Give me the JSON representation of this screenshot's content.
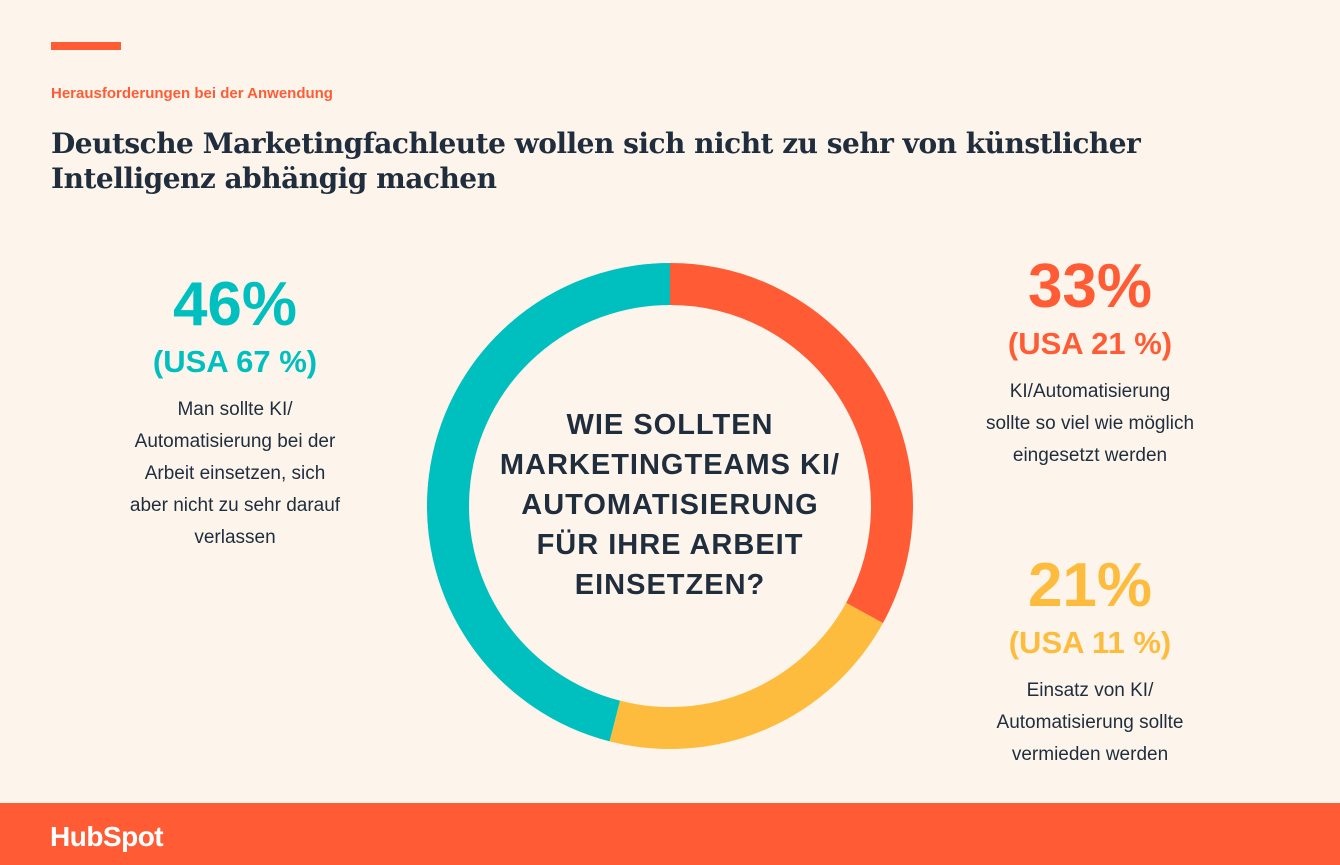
{
  "eyebrow": "Herausforderungen bei der Anwendung",
  "title_line1": "Deutsche Marketingfachleute wollen sich nicht zu sehr von künstlicher",
  "title_line2": "Intelligenz abhängig machen",
  "center_question": [
    "WIE SOLLTEN",
    "MARKETINGTEAMS KI/",
    "AUTOMATISIERUNG",
    "FÜR IHRE ARBEIT",
    "EINSETZEN?"
  ],
  "stats": {
    "left": {
      "pct": "46%",
      "usa": "(USA 67 %)",
      "desc": [
        "Man sollte KI/",
        "Automatisierung bei der",
        "Arbeit einsetzen, sich",
        "aber nicht zu sehr darauf",
        "verlassen"
      ]
    },
    "right_top": {
      "pct": "33%",
      "usa": "(USA 21 %)",
      "desc": [
        "KI/Automatisierung",
        "sollte so viel wie möglich",
        "eingesetzt werden"
      ]
    },
    "right_bottom": {
      "pct": "21%",
      "usa": "(USA 11 %)",
      "desc": [
        "Einsatz von KI/",
        "Automatisierung sollte",
        "vermieden werden"
      ]
    }
  },
  "colors": {
    "orange": "#ff5c35",
    "yellow": "#fdbc3d",
    "teal": "#00bfbf",
    "navy": "#1f2d3d",
    "background": "#fdf5ec"
  },
  "chart_data": {
    "type": "pie",
    "categories": [
      "KI/Automatisierung sollte so viel wie möglich eingesetzt werden",
      "Einsatz von KI/Automatisierung sollte vermieden werden",
      "Man sollte KI/Automatisierung bei der Arbeit einsetzen, sich aber nicht zu sehr darauf verlassen"
    ],
    "values": [
      33,
      21,
      46
    ],
    "usa_values": [
      21,
      11,
      67
    ],
    "colors": [
      "#ff5c35",
      "#fdbc3d",
      "#00bfbf"
    ]
  },
  "footer": {
    "logo_text": "HubSpot"
  }
}
